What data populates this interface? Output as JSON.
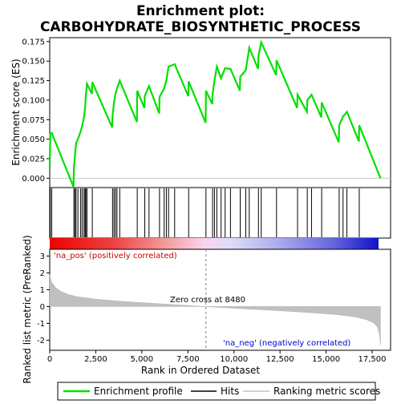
{
  "chart_data": {
    "type": "line",
    "title_line1": "Enrichment plot:",
    "title_line2": "CARBOHYDRATE_BIOSYNTHETIC_PROCESS",
    "xlabel": "Rank in Ordered Dataset",
    "ylabel_top": "Enrichment score (ES)",
    "ylabel_bottom": "Ranked list metric (PreRanked)",
    "x_range": [
      0,
      18500
    ],
    "x_ticks": [
      "0",
      "2,500",
      "5,000",
      "7,500",
      "10,000",
      "12,500",
      "15,000",
      "17,500"
    ],
    "x_tick_values": [
      0,
      2500,
      5000,
      7500,
      10000,
      12500,
      15000,
      17500
    ],
    "es_ylim": [
      -0.012,
      0.18
    ],
    "es_ticks": [
      "0.000",
      "0.025",
      "0.050",
      "0.075",
      "0.100",
      "0.125",
      "0.150",
      "0.175"
    ],
    "es_tick_values": [
      0,
      0.025,
      0.05,
      0.075,
      0.1,
      0.125,
      0.15,
      0.175
    ],
    "metric_ylim": [
      -2.6,
      3.4
    ],
    "metric_ticks": [
      "3",
      "2",
      "1",
      "0",
      "-1",
      "-2"
    ],
    "metric_tick_values": [
      3,
      2,
      1,
      0,
      -1,
      -2
    ],
    "zero_cross_label": "Zero cross at 8480",
    "zero_cross": 8480,
    "pos_label": "'na_pos' (positively correlated)",
    "neg_label": "'na_neg' (negatively correlated)",
    "n_genes": 17950,
    "legend": [
      "Enrichment profile",
      "Hits",
      "Ranking metric scores"
    ],
    "colors": {
      "profile": "#00e000",
      "hits": "#000000",
      "metric": "#c0c0c0",
      "pos_text": "#cc0000",
      "neg_text": "#0000cc",
      "zero_line": "#808080"
    },
    "hits": [
      30,
      110,
      1310,
      1370,
      1430,
      1530,
      1680,
      1760,
      1860,
      1920,
      1960,
      2020,
      2310,
      3410,
      3490,
      3570,
      3650,
      3800,
      4750,
      5160,
      5390,
      5960,
      6210,
      6330,
      6450,
      6780,
      7540,
      8480,
      8840,
      8940,
      9070,
      9300,
      9520,
      9810,
      10340,
      10640,
      10830,
      11330,
      11480,
      12310,
      13450,
      13980,
      14210,
      14760,
      15710,
      15920,
      16130,
      16800
    ],
    "es_profile": {
      "x": [
        0,
        30,
        110,
        1290,
        1310,
        1370,
        1430,
        1530,
        1680,
        1760,
        1860,
        1920,
        1960,
        2020,
        2290,
        2310,
        3390,
        3410,
        3490,
        3570,
        3650,
        3800,
        4730,
        4750,
        5140,
        5160,
        5390,
        5940,
        5960,
        6210,
        6330,
        6450,
        6780,
        7520,
        7540,
        8460,
        8480,
        8820,
        8840,
        8940,
        9070,
        9300,
        9520,
        9810,
        10320,
        10340,
        10640,
        10830,
        11310,
        11330,
        11480,
        12290,
        12310,
        13430,
        13450,
        13960,
        13980,
        14210,
        14740,
        14760,
        15690,
        15710,
        15920,
        16130,
        16780,
        16800,
        17950
      ],
      "y": [
        0.015,
        0.057,
        0.058,
        -0.011,
        0.012,
        0.03,
        0.045,
        0.05,
        0.06,
        0.067,
        0.078,
        0.09,
        0.105,
        0.121,
        0.108,
        0.123,
        0.065,
        0.08,
        0.097,
        0.108,
        0.115,
        0.125,
        0.072,
        0.112,
        0.09,
        0.105,
        0.118,
        0.083,
        0.104,
        0.115,
        0.125,
        0.143,
        0.146,
        0.105,
        0.124,
        0.071,
        0.112,
        0.095,
        0.108,
        0.125,
        0.143,
        0.128,
        0.141,
        0.14,
        0.112,
        0.13,
        0.138,
        0.167,
        0.14,
        0.157,
        0.174,
        0.132,
        0.151,
        0.09,
        0.107,
        0.085,
        0.1,
        0.107,
        0.078,
        0.097,
        0.046,
        0.068,
        0.079,
        0.085,
        0.047,
        0.068,
        0.0
      ]
    },
    "metric_curve": {
      "x": [
        0,
        100,
        300,
        600,
        1000,
        1500,
        2500,
        4000,
        6000,
        8480,
        10000,
        12000,
        14000,
        15500,
        16500,
        17200,
        17600,
        17800,
        17900,
        17950
      ],
      "y": [
        1.9,
        1.45,
        1.15,
        0.9,
        0.72,
        0.58,
        0.44,
        0.3,
        0.16,
        0.0,
        -0.1,
        -0.22,
        -0.35,
        -0.47,
        -0.6,
        -0.78,
        -0.98,
        -1.25,
        -1.65,
        -2.3
      ]
    }
  }
}
